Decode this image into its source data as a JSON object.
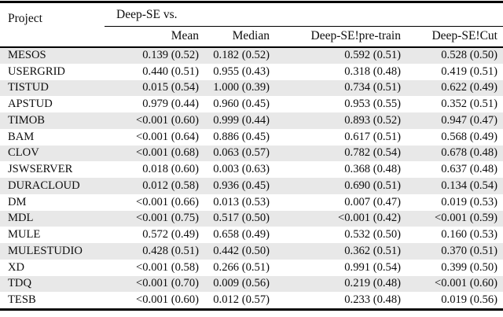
{
  "table": {
    "project_header": "Project",
    "group_header": "Deep-SE vs.",
    "columns": [
      "Mean",
      "Median",
      "Deep-SE!pre-train",
      "Deep-SE!Cut"
    ],
    "rows": [
      {
        "project": "MESOS",
        "values": [
          "0.139 (0.52)",
          "0.182 (0.52)",
          "0.592 (0.51)",
          "0.528 (0.50)"
        ]
      },
      {
        "project": "USERGRID",
        "values": [
          "0.440 (0.51)",
          "0.955 (0.43)",
          "0.318 (0.48)",
          "0.419 (0.51)"
        ]
      },
      {
        "project": "TISTUD",
        "values": [
          "0.015 (0.54)",
          "1.000 (0.39)",
          "0.734 (0.51)",
          "0.622 (0.49)"
        ]
      },
      {
        "project": "APSTUD",
        "values": [
          "0.979 (0.44)",
          "0.960 (0.45)",
          "0.953 (0.55)",
          "0.352 (0.51)"
        ]
      },
      {
        "project": "TIMOB",
        "values": [
          "<0.001 (0.60)",
          "0.999 (0.44)",
          "0.893 (0.52)",
          "0.947 (0.47)"
        ]
      },
      {
        "project": "BAM",
        "values": [
          "<0.001 (0.64)",
          "0.886 (0.45)",
          "0.617 (0.51)",
          "0.568 (0.49)"
        ]
      },
      {
        "project": "CLOV",
        "values": [
          "<0.001 (0.68)",
          "0.063 (0.57)",
          "0.782 (0.54)",
          "0.678 (0.48)"
        ]
      },
      {
        "project": "JSWSERVER",
        "values": [
          "0.018 (0.60)",
          "0.003 (0.63)",
          "0.368 (0.48)",
          "0.637 (0.48)"
        ]
      },
      {
        "project": "DURACLOUD",
        "values": [
          "0.012 (0.58)",
          "0.936 (0.45)",
          "0.690 (0.51)",
          "0.134 (0.54)"
        ]
      },
      {
        "project": "DM",
        "values": [
          "<0.001 (0.66)",
          "0.013 (0.53)",
          "0.007 (0.47)",
          "0.019 (0.53)"
        ]
      },
      {
        "project": "MDL",
        "values": [
          "<0.001 (0.75)",
          "0.517 (0.50)",
          "<0.001 (0.42)",
          "<0.001 (0.59)"
        ]
      },
      {
        "project": "MULE",
        "values": [
          "0.572 (0.49)",
          "0.658 (0.49)",
          "0.532 (0.50)",
          "0.160 (0.53)"
        ]
      },
      {
        "project": "MULESTUDIO",
        "values": [
          "0.428 (0.51)",
          "0.442 (0.50)",
          "0.362 (0.51)",
          "0.370 (0.51)"
        ]
      },
      {
        "project": "XD",
        "values": [
          "<0.001 (0.58)",
          "0.266 (0.51)",
          "0.991 (0.54)",
          "0.399 (0.50)"
        ]
      },
      {
        "project": "TDQ",
        "values": [
          "<0.001 (0.70)",
          "0.009 (0.56)",
          "0.219 (0.48)",
          "<0.001 (0.60)"
        ]
      },
      {
        "project": "TESB",
        "values": [
          "<0.001 (0.60)",
          "0.012 (0.57)",
          "0.233 (0.48)",
          "0.019 (0.56)"
        ]
      }
    ]
  },
  "colors": {
    "row_shade": "#e8e8e8",
    "rule": "#000000",
    "text": "#0d0d0d",
    "background": "#ffffff"
  }
}
